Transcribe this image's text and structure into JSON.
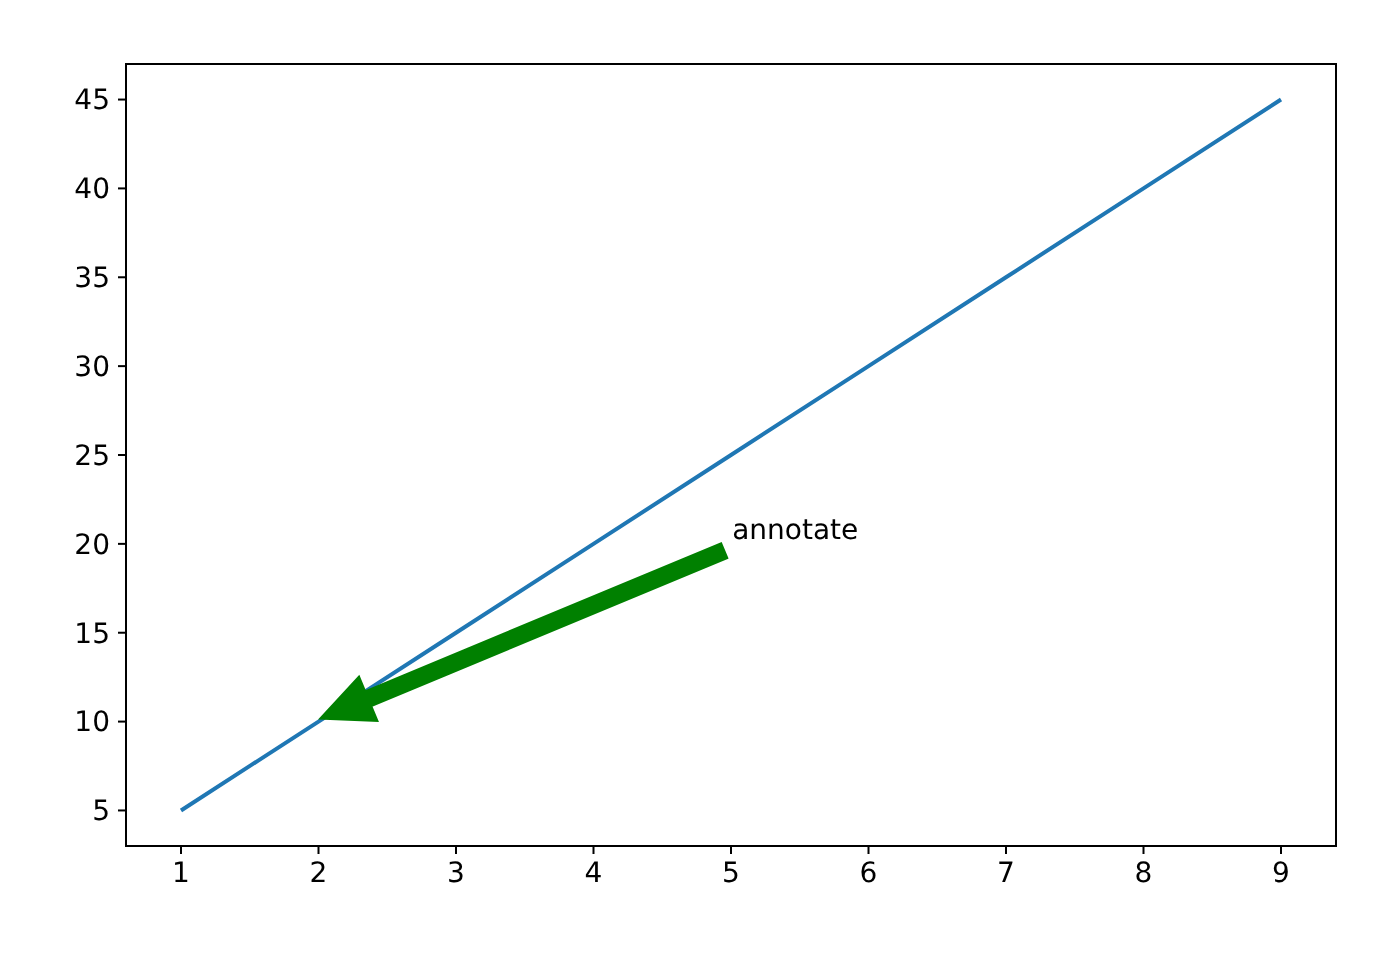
{
  "chart_data": {
    "type": "line",
    "x": [
      1,
      2,
      3,
      4,
      5,
      6,
      7,
      8,
      9
    ],
    "series": [
      {
        "color": "#1f77b4",
        "values": [
          5,
          10,
          15,
          20,
          25,
          30,
          35,
          40,
          45
        ]
      }
    ],
    "xlim": [
      0.6,
      9.4
    ],
    "xticks": [
      1,
      2,
      3,
      4,
      5,
      6,
      7,
      8,
      9
    ],
    "ylim": [
      3,
      47
    ],
    "yticks": [
      5,
      10,
      15,
      20,
      25,
      30,
      35,
      40,
      45
    ],
    "annotations": [
      "annotate"
    ],
    "grid": false
  }
}
